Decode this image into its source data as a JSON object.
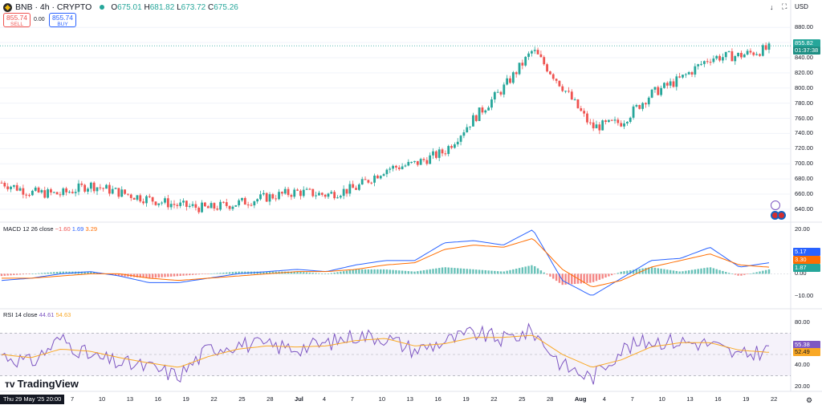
{
  "header": {
    "title": "BNB · 4h · CRYPTO",
    "ohlc": {
      "open_label": "O",
      "open": "675.01",
      "high_label": "H",
      "high": "681.82",
      "low_label": "L",
      "low": "673.72",
      "close_label": "C",
      "close": "675.26"
    },
    "sell": {
      "price": "855.74",
      "label": "SELL"
    },
    "buy": {
      "price": "855.74",
      "label": "BUY"
    },
    "spread": "0.00",
    "currency": "USD"
  },
  "price_axis": {
    "ticks": [
      "880.00",
      "860.00",
      "840.00",
      "820.00",
      "800.00",
      "780.00",
      "760.00",
      "740.00",
      "720.00",
      "700.00",
      "680.00",
      "660.00",
      "640.00"
    ],
    "last_price": "855.82",
    "countdown": "01:37:38"
  },
  "macd": {
    "label": "MACD",
    "params": "12 26 close",
    "v1": "−1.60",
    "v2": "1.69",
    "v3": "3.29",
    "ticks": [
      "20.00",
      "0.00",
      "−10.00"
    ],
    "badges": [
      "5.17",
      "3.30",
      "1.87"
    ]
  },
  "rsi": {
    "label": "RSI",
    "params": "14 close",
    "v1": "44.61",
    "v2": "54.63",
    "ticks": [
      "80.00",
      "60.00",
      "40.00",
      "20.00"
    ],
    "badges": [
      "55.38",
      "52.49"
    ]
  },
  "time_axis": {
    "labels": [
      "7",
      "10",
      "13",
      "16",
      "19",
      "22",
      "25",
      "28",
      "Jul",
      "4",
      "7",
      "10",
      "13",
      "16",
      "19",
      "22",
      "25",
      "28",
      "Aug",
      "4",
      "7",
      "10",
      "13",
      "16",
      "19",
      "22"
    ],
    "cursor_date": "Thu 29 May '25   20:00"
  },
  "branding": {
    "name": "TradingView"
  },
  "colors": {
    "up": "#26a69a",
    "down": "#ef5350",
    "macd": "#2962ff",
    "signal": "#ff6d00",
    "rsi": "#7e57c2",
    "rsi_ma": "#f9a825"
  },
  "chart_data": [
    {
      "type": "candlestick",
      "title": "BNB · 4h · CRYPTO",
      "x": [
        "May 29",
        "Jun 7",
        "Jun 10",
        "Jun 13",
        "Jun 16",
        "Jun 19",
        "Jun 22",
        "Jun 25",
        "Jun 28",
        "Jul 1",
        "Jul 4",
        "Jul 7",
        "Jul 10",
        "Jul 13",
        "Jul 16",
        "Jul 19",
        "Jul 22",
        "Jul 25",
        "Jul 28",
        "Aug 1",
        "Aug 4",
        "Aug 7",
        "Aug 10",
        "Aug 13",
        "Aug 16",
        "Aug 19",
        "Aug 21"
      ],
      "close": [
        675,
        662,
        660,
        672,
        662,
        653,
        645,
        641,
        648,
        656,
        663,
        659,
        668,
        693,
        700,
        716,
        760,
        800,
        850,
        802,
        748,
        755,
        792,
        812,
        840,
        843,
        852
      ],
      "ylim": [
        625,
        893
      ]
    },
    {
      "type": "line",
      "title": "MACD 12 26 close",
      "series": [
        {
          "name": "MACD",
          "values": [
            -3,
            -2,
            0,
            1,
            -1,
            -4,
            -4,
            -2,
            0,
            1,
            2,
            1,
            4,
            6,
            6,
            14,
            15,
            13,
            20,
            -3,
            -10,
            -2,
            6,
            7,
            12,
            3,
            5
          ]
        },
        {
          "name": "Signal",
          "values": [
            -2,
            -2,
            -1,
            0,
            0,
            -2,
            -3,
            -2,
            -1,
            0,
            1,
            1,
            2,
            4,
            5,
            11,
            13,
            12,
            16,
            2,
            -6,
            -3,
            3,
            6,
            9,
            4,
            3
          ]
        }
      ],
      "ylim": [
        -14,
        23
      ]
    },
    {
      "type": "line",
      "title": "RSI 14 close",
      "series": [
        {
          "name": "RSI",
          "values": [
            50,
            42,
            65,
            48,
            42,
            38,
            30,
            55,
            60,
            58,
            56,
            60,
            68,
            66,
            54,
            62,
            70,
            64,
            72,
            40,
            28,
            55,
            63,
            62,
            60,
            48,
            55
          ]
        },
        {
          "name": "RSI-based MA",
          "values": [
            50,
            47,
            55,
            53,
            47,
            42,
            38,
            48,
            55,
            58,
            57,
            58,
            63,
            65,
            58,
            60,
            66,
            66,
            68,
            50,
            38,
            45,
            57,
            61,
            61,
            54,
            52
          ]
        }
      ],
      "ylim": [
        17,
        83
      ]
    }
  ]
}
